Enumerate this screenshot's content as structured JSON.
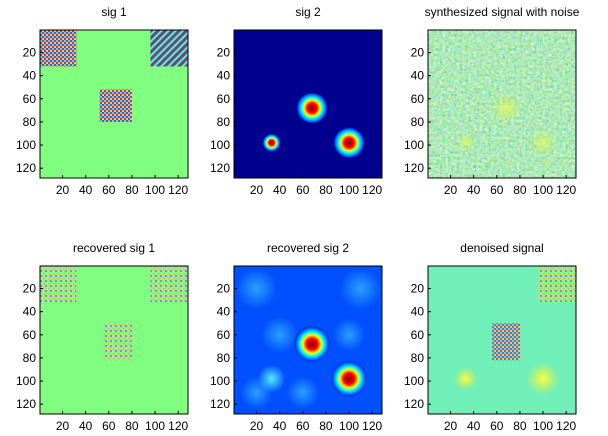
{
  "chart_data": [
    {
      "type": "image",
      "title": "sig 1",
      "xlim": [
        0.5,
        128.5
      ],
      "ylim": [
        128.5,
        0.5
      ],
      "xticks": [
        20,
        40,
        60,
        80,
        100,
        120
      ],
      "yticks": [
        20,
        40,
        60,
        80,
        100,
        120
      ]
    },
    {
      "type": "image",
      "title": "sig 2",
      "xlim": [
        0.5,
        128.5
      ],
      "ylim": [
        128.5,
        0.5
      ],
      "xticks": [
        20,
        40,
        60,
        80,
        100,
        120
      ],
      "yticks": [
        20,
        40,
        60,
        80,
        100,
        120
      ]
    },
    {
      "type": "image",
      "title": "synthesized signal with noise",
      "xlim": [
        0.5,
        128.5
      ],
      "ylim": [
        128.5,
        0.5
      ],
      "xticks": [
        20,
        40,
        60,
        80,
        100,
        120
      ],
      "yticks": [
        20,
        40,
        60,
        80,
        100,
        120
      ]
    },
    {
      "type": "image",
      "title": "recovered sig 1",
      "xlim": [
        0.5,
        128.5
      ],
      "ylim": [
        128.5,
        0.5
      ],
      "xticks": [
        20,
        40,
        60,
        80,
        100,
        120
      ],
      "yticks": [
        20,
        40,
        60,
        80,
        100,
        120
      ]
    },
    {
      "type": "image",
      "title": "recovered sig 2",
      "xlim": [
        0.5,
        128.5
      ],
      "ylim": [
        128.5,
        0.5
      ],
      "xticks": [
        20,
        40,
        60,
        80,
        100,
        120
      ],
      "yticks": [
        20,
        40,
        60,
        80,
        100,
        120
      ]
    },
    {
      "type": "image",
      "title": "denoised signal",
      "xlim": [
        0.5,
        128.5
      ],
      "ylim": [
        128.5,
        0.5
      ],
      "xticks": [
        20,
        40,
        60,
        80,
        100,
        120
      ],
      "yticks": [
        20,
        40,
        60,
        80,
        100,
        120
      ]
    }
  ]
}
